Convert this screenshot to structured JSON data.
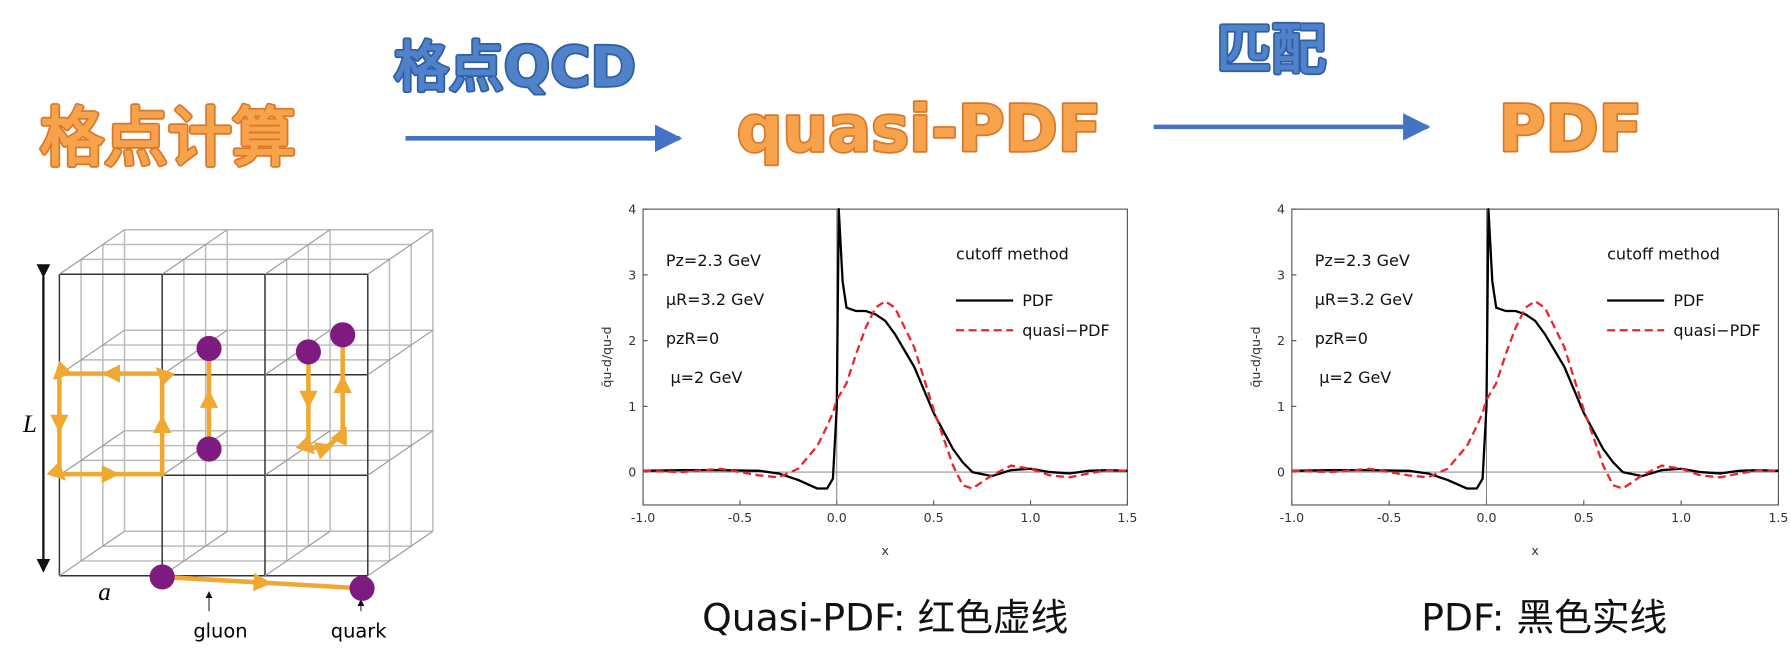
{
  "flow": {
    "step1": "格点计算",
    "method1": "格点QCD",
    "step2": "quasi-PDF",
    "method2": "匹配",
    "step3": "PDF"
  },
  "lattice": {
    "size_label": "L",
    "spacing_label": "a",
    "gluon_label": "gluon",
    "quark_label": "quark"
  },
  "chart_data": [
    {
      "type": "line",
      "caption": "Quasi-PDF: 红色虚线",
      "x": [
        -1,
        -0.8,
        -0.6,
        -0.4,
        -0.3,
        -0.2,
        -0.1,
        -0.05,
        -0.02,
        0,
        0.01,
        0.03,
        0.05,
        0.1,
        0.15,
        0.2,
        0.25,
        0.3,
        0.4,
        0.5,
        0.6,
        0.65,
        0.7,
        0.8,
        0.9,
        1.0,
        1.1,
        1.2,
        1.3,
        1.4,
        1.5
      ],
      "series": [
        {
          "name": "PDF",
          "color": "#000000",
          "dashed": false,
          "values": [
            0.02,
            0.03,
            0.03,
            0.02,
            -0.02,
            -0.12,
            -0.25,
            -0.25,
            -0.1,
            1.0,
            4.0,
            2.9,
            2.5,
            2.45,
            2.45,
            2.4,
            2.3,
            2.1,
            1.6,
            0.9,
            0.35,
            0.15,
            0.0,
            -0.06,
            0.03,
            0.05,
            0.0,
            -0.02,
            0.02,
            0.03,
            0.02
          ]
        },
        {
          "name": "quasi−PDF",
          "color": "#e8262c",
          "dashed": true,
          "values": [
            0.02,
            0.0,
            0.05,
            -0.05,
            -0.08,
            0.05,
            0.4,
            0.7,
            0.9,
            1.1,
            1.15,
            1.25,
            1.35,
            1.8,
            2.2,
            2.5,
            2.6,
            2.5,
            1.9,
            0.95,
            0.1,
            -0.2,
            -0.25,
            -0.05,
            0.1,
            0.05,
            -0.05,
            -0.08,
            -0.02,
            0.03,
            0.02
          ]
        }
      ],
      "xlim": [
        -1,
        1.5
      ],
      "ylim": [
        -0.5,
        4
      ],
      "xticks": [
        {
          "value": -1,
          "label": "-1.0"
        },
        -0.5,
        {
          "value": 0,
          "label": "0.0"
        },
        0.5,
        {
          "value": 1,
          "label": "1.0"
        },
        1.5
      ],
      "yticks": [
        0,
        1,
        2,
        3,
        4
      ],
      "xlabel": "x",
      "ylabel": "q̄u-d/qu-d",
      "legend_title": "cutoff method",
      "legend": "upper right",
      "annotations": [
        "Pz=2.3 GeV",
        "μR=3.2 GeV",
        "pzR=0",
        "μ=2 GeV"
      ]
    },
    {
      "type": "line",
      "caption": "PDF: 黑色实线",
      "x": [
        -1,
        -0.8,
        -0.6,
        -0.4,
        -0.3,
        -0.2,
        -0.1,
        -0.05,
        -0.02,
        0,
        0.01,
        0.03,
        0.05,
        0.1,
        0.15,
        0.2,
        0.25,
        0.3,
        0.4,
        0.5,
        0.6,
        0.65,
        0.7,
        0.8,
        0.9,
        1.0,
        1.1,
        1.2,
        1.3,
        1.4,
        1.5
      ],
      "series": [
        {
          "name": "PDF",
          "color": "#000000",
          "dashed": false,
          "values": [
            0.02,
            0.03,
            0.03,
            0.02,
            -0.02,
            -0.12,
            -0.25,
            -0.25,
            -0.1,
            1.0,
            4.0,
            2.9,
            2.5,
            2.45,
            2.45,
            2.4,
            2.3,
            2.1,
            1.6,
            0.9,
            0.35,
            0.15,
            0.0,
            -0.06,
            0.03,
            0.05,
            0.0,
            -0.02,
            0.02,
            0.03,
            0.02
          ]
        },
        {
          "name": "quasi−PDF",
          "color": "#e8262c",
          "dashed": true,
          "values": [
            0.02,
            0.0,
            0.05,
            -0.05,
            -0.08,
            0.05,
            0.4,
            0.7,
            0.9,
            1.1,
            1.15,
            1.25,
            1.35,
            1.8,
            2.2,
            2.5,
            2.6,
            2.5,
            1.9,
            0.95,
            0.1,
            -0.2,
            -0.25,
            -0.05,
            0.1,
            0.05,
            -0.05,
            -0.08,
            -0.02,
            0.03,
            0.02
          ]
        }
      ],
      "xlim": [
        -1,
        1.5
      ],
      "ylim": [
        -0.5,
        4
      ],
      "xticks": [
        {
          "value": -1,
          "label": "-1.0"
        },
        -0.5,
        {
          "value": 0,
          "label": "0.0"
        },
        0.5,
        {
          "value": 1,
          "label": "1.0"
        },
        1.5
      ],
      "yticks": [
        0,
        1,
        2,
        3,
        4
      ],
      "xlabel": "x",
      "ylabel": "q̄u-d/qu-d",
      "legend_title": "cutoff method",
      "legend": "upper right",
      "annotations": [
        "Pz=2.3 GeV",
        "μR=3.2 GeV",
        "pzR=0",
        "μ=2 GeV"
      ]
    }
  ]
}
